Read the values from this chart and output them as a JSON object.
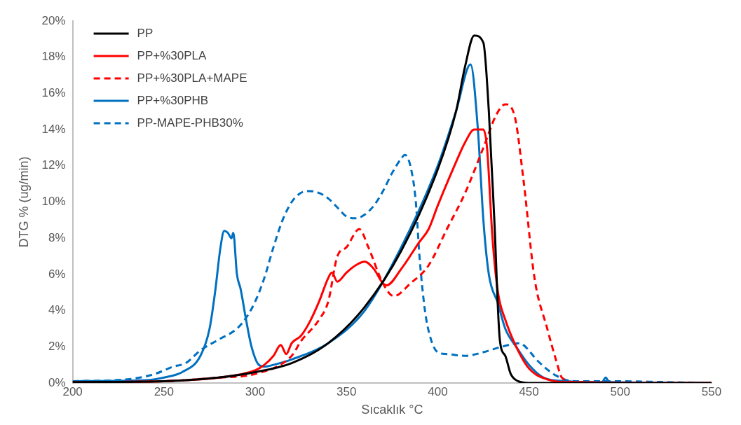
{
  "chart_data": {
    "type": "line",
    "xlabel": "Sıcaklık °C",
    "ylabel": "DTG % (ug/min)",
    "legend": "top left",
    "grid": false,
    "marker": "none",
    "xlim": [
      200,
      550
    ],
    "xticks": [
      200,
      250,
      300,
      350,
      400,
      450,
      500,
      550
    ],
    "ylim": [
      0,
      20
    ],
    "yticks": [
      {
        "value": 0,
        "label": "0%"
      },
      {
        "value": 2,
        "label": "2%"
      },
      {
        "value": 4,
        "label": "4%"
      },
      {
        "value": 6,
        "label": "6%"
      },
      {
        "value": 8,
        "label": "8%"
      },
      {
        "value": 10,
        "label": "10%"
      },
      {
        "value": 12,
        "label": "12%"
      },
      {
        "value": 14,
        "label": "14%"
      },
      {
        "value": 16,
        "label": "16%"
      },
      {
        "value": 18,
        "label": "18%"
      },
      {
        "value": 20,
        "label": "20%"
      }
    ],
    "series": [
      {
        "name": "PP",
        "color": "#000000",
        "line_style": "solid",
        "x": [
          200,
          250,
          280,
          300,
          320,
          340,
          360,
          380,
          400,
          410,
          415,
          420,
          425,
          428,
          431,
          434,
          437,
          440,
          444,
          450,
          550
        ],
        "values": [
          0.05,
          0.1,
          0.3,
          0.6,
          1.1,
          2.2,
          4.2,
          7.3,
          11.8,
          15,
          17.5,
          19.2,
          18.8,
          15,
          9,
          2.4,
          1.5,
          0.5,
          0.1,
          0,
          0
        ]
      },
      {
        "name": "PP+%30PLA",
        "color": "#ff0000",
        "line_style": "solid",
        "x": [
          200,
          250,
          280,
          300,
          305,
          310,
          314,
          317,
          320,
          325,
          330,
          335,
          340,
          342,
          345,
          350,
          355,
          360,
          365,
          370,
          372,
          380,
          390,
          395,
          400,
          410,
          415,
          420,
          425,
          427,
          430,
          433,
          437,
          443,
          450,
          460,
          470,
          550
        ],
        "values": [
          0.05,
          0.1,
          0.3,
          0.7,
          1,
          1.5,
          2.1,
          1.6,
          2.2,
          2.6,
          3.4,
          4.5,
          5.8,
          6.1,
          5.6,
          6.1,
          6.5,
          6.7,
          6.3,
          5.5,
          5.4,
          6.3,
          7.8,
          8.5,
          9.8,
          12.2,
          13.3,
          14,
          14,
          13,
          8,
          5,
          3.5,
          2,
          0.8,
          0.2,
          0.05,
          0
        ]
      },
      {
        "name": "PP+%30PLA+MAPE",
        "color": "#ff0000",
        "line_style": "dashed",
        "x": [
          200,
          250,
          280,
          300,
          320,
          325,
          335,
          340,
          345,
          350,
          357,
          362,
          370,
          376,
          385,
          395,
          405,
          415,
          425,
          432,
          437,
          442,
          447,
          453,
          460,
          465,
          468,
          475,
          550
        ],
        "values": [
          0.05,
          0.1,
          0.3,
          0.5,
          1.5,
          2.3,
          3.5,
          4.5,
          7,
          7.5,
          8.5,
          7.5,
          5.5,
          4.8,
          5.5,
          6.5,
          8.5,
          10.5,
          13,
          14.8,
          15.4,
          14.8,
          11.2,
          5.8,
          3,
          1.2,
          0.3,
          0.05,
          0
        ]
      },
      {
        "name": "PP+%30PHB",
        "color": "#0070c0",
        "line_style": "solid",
        "x": [
          200,
          240,
          250,
          260,
          270,
          275,
          278,
          281,
          283,
          285,
          287,
          288,
          290,
          292,
          295,
          298,
          302,
          305,
          310,
          320,
          340,
          360,
          380,
          400,
          410,
          418,
          422,
          425,
          428,
          433,
          437,
          443,
          450,
          458,
          470,
          490,
          492,
          494,
          550
        ],
        "values": [
          0.1,
          0.15,
          0.3,
          0.6,
          1.5,
          3,
          5,
          7.5,
          8.4,
          8.3,
          8,
          8.3,
          6,
          5.2,
          3.5,
          2,
          1,
          0.9,
          1,
          1.3,
          2.2,
          4,
          7.5,
          12,
          15,
          17.6,
          14,
          9,
          6,
          4.4,
          3,
          2,
          1,
          0.3,
          0.1,
          0.05,
          0.3,
          0.05,
          0
        ]
      },
      {
        "name": "PP-MAPE-PHB30%",
        "color": "#0070c0",
        "line_style": "dashed",
        "x": [
          200,
          230,
          245,
          255,
          262,
          270,
          280,
          290,
          295,
          300,
          305,
          310,
          315,
          320,
          325,
          330,
          335,
          340,
          345,
          350,
          355,
          360,
          365,
          370,
          375,
          380,
          382,
          385,
          388,
          390,
          393,
          396,
          400,
          405,
          415,
          425,
          435,
          445,
          447,
          455,
          465,
          475,
          490,
          550
        ],
        "values": [
          0.1,
          0.2,
          0.5,
          0.9,
          1.1,
          1.8,
          2.4,
          3,
          3.6,
          4.5,
          5.8,
          7.5,
          9,
          10,
          10.5,
          10.6,
          10.5,
          10.2,
          9.7,
          9.2,
          9.1,
          9.3,
          9.8,
          10.6,
          11.6,
          12.4,
          12.6,
          12,
          10,
          7,
          4,
          2.5,
          1.7,
          1.6,
          1.5,
          1.7,
          2,
          2.2,
          2.1,
          1.2,
          0.4,
          0.1,
          0.1,
          0
        ]
      }
    ]
  }
}
